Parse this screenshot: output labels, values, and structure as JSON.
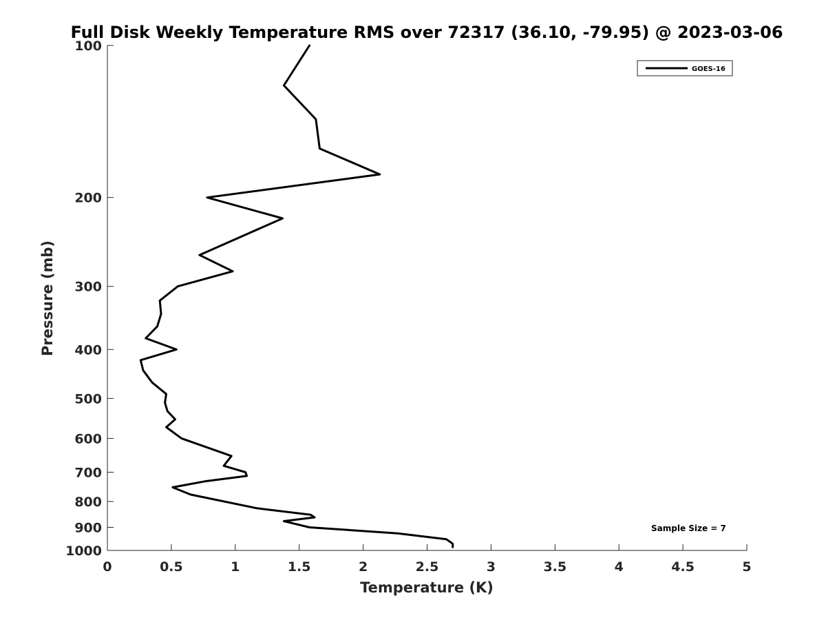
{
  "chart_data": {
    "type": "line",
    "title": "Full Disk Weekly Temperature RMS over 72317 (36.10, -79.95) @ 2023-03-06",
    "xlabel": "Temperature (K)",
    "ylabel": "Pressure (mb)",
    "xlim": [
      0,
      5
    ],
    "ylim": [
      100,
      1000
    ],
    "y_scale": "log",
    "y_reversed": true,
    "x_ticks": [
      "0",
      "0.5",
      "1",
      "1.5",
      "2",
      "2.5",
      "3",
      "3.5",
      "4",
      "4.5",
      "5"
    ],
    "y_ticks": [
      "100",
      "200",
      "300",
      "400",
      "500",
      "600",
      "700",
      "800",
      "900",
      "1000"
    ],
    "grid": false,
    "legend_position": "top-right",
    "series": [
      {
        "name": "GOES-16",
        "color": "#000000",
        "points": [
          {
            "x": 1.58,
            "y": 100
          },
          {
            "x": 1.38,
            "y": 120
          },
          {
            "x": 1.63,
            "y": 140
          },
          {
            "x": 1.66,
            "y": 160
          },
          {
            "x": 2.13,
            "y": 180
          },
          {
            "x": 0.78,
            "y": 200
          },
          {
            "x": 1.37,
            "y": 220
          },
          {
            "x": 0.72,
            "y": 260
          },
          {
            "x": 0.98,
            "y": 280
          },
          {
            "x": 0.55,
            "y": 300
          },
          {
            "x": 0.41,
            "y": 320
          },
          {
            "x": 0.42,
            "y": 340
          },
          {
            "x": 0.39,
            "y": 360
          },
          {
            "x": 0.3,
            "y": 380
          },
          {
            "x": 0.54,
            "y": 400
          },
          {
            "x": 0.26,
            "y": 420
          },
          {
            "x": 0.28,
            "y": 440
          },
          {
            "x": 0.35,
            "y": 465
          },
          {
            "x": 0.46,
            "y": 490
          },
          {
            "x": 0.45,
            "y": 510
          },
          {
            "x": 0.47,
            "y": 530
          },
          {
            "x": 0.53,
            "y": 550
          },
          {
            "x": 0.46,
            "y": 570
          },
          {
            "x": 0.58,
            "y": 600
          },
          {
            "x": 0.97,
            "y": 650
          },
          {
            "x": 0.91,
            "y": 680
          },
          {
            "x": 1.08,
            "y": 700
          },
          {
            "x": 1.09,
            "y": 712
          },
          {
            "x": 0.76,
            "y": 730
          },
          {
            "x": 0.51,
            "y": 750
          },
          {
            "x": 0.65,
            "y": 775
          },
          {
            "x": 1.17,
            "y": 825
          },
          {
            "x": 1.59,
            "y": 850
          },
          {
            "x": 1.62,
            "y": 860
          },
          {
            "x": 1.38,
            "y": 875
          },
          {
            "x": 1.58,
            "y": 900
          },
          {
            "x": 2.27,
            "y": 925
          },
          {
            "x": 2.65,
            "y": 950
          },
          {
            "x": 2.7,
            "y": 970
          },
          {
            "x": 2.7,
            "y": 985
          }
        ]
      }
    ],
    "annotations": [
      "Sample Size = 7"
    ]
  }
}
